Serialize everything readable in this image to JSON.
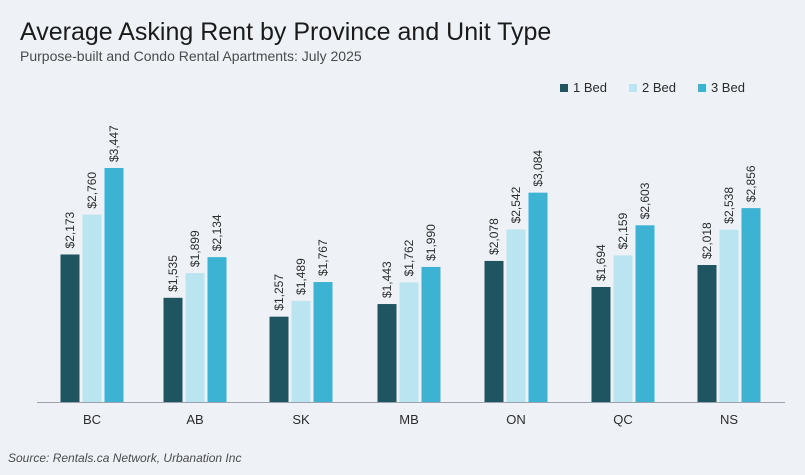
{
  "title": "Average Asking Rent by Province and Unit Type",
  "subtitle": "Purpose-built and Condo Rental Apartments: July 2025",
  "source": "Source: Rentals.ca Network, Urbanation Inc",
  "chart_data": {
    "type": "bar",
    "title": "Average Asking Rent by Province and Unit Type",
    "subtitle": "Purpose-built and Condo Rental Apartments: July 2025",
    "categories": [
      "BC",
      "AB",
      "SK",
      "MB",
      "ON",
      "QC",
      "NS"
    ],
    "series": [
      {
        "name": "1 Bed",
        "color": "#1f5461",
        "values": [
          2173,
          1535,
          1257,
          1443,
          2078,
          1694,
          2018
        ]
      },
      {
        "name": "2 Bed",
        "color": "#b9e4f0",
        "values": [
          2760,
          1899,
          1489,
          1762,
          2542,
          2159,
          2538
        ]
      },
      {
        "name": "3 Bed",
        "color": "#3cb3d3",
        "values": [
          3447,
          2134,
          1767,
          1990,
          3084,
          2603,
          2856
        ]
      }
    ],
    "value_labels": [
      [
        "$2,173",
        "$1,535",
        "$1,257",
        "$1,443",
        "$2,078",
        "$1,694",
        "$2,018"
      ],
      [
        "$2,760",
        "$1,899",
        "$1,489",
        "$1,762",
        "$2,542",
        "$2,159",
        "$2,538"
      ],
      [
        "$3,447",
        "$2,134",
        "$1,767",
        "$1,990",
        "$3,084",
        "$2,603",
        "$2,856"
      ]
    ],
    "ylim": [
      0,
      3447
    ],
    "xlabel": "",
    "ylabel": "",
    "grid": false,
    "legend_position": "top-right",
    "value_label_orientation": "vertical"
  }
}
